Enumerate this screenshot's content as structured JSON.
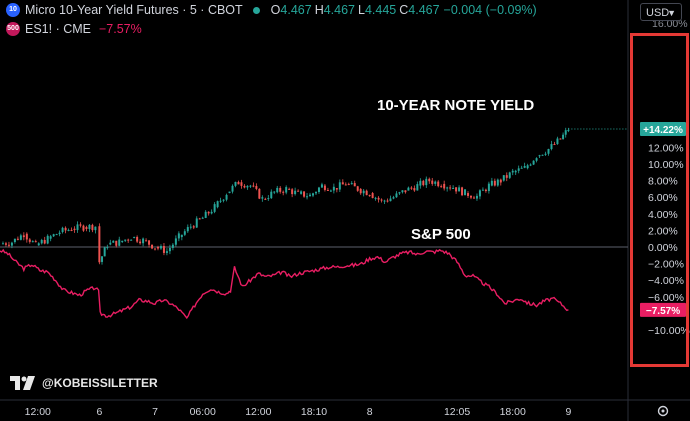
{
  "header": {
    "symbol_badge": "10",
    "title": "Micro 10-Year Yield Futures · 5 · CBOT",
    "o_label": "O",
    "o_value": "4.467",
    "h_label": "H",
    "h_value": "4.467",
    "l_label": "L",
    "l_value": "4.445",
    "c_label": "C",
    "c_value": "4.467",
    "change": "−0.004 (−0.09%)",
    "compare_badge": "500",
    "compare_symbol": "ES1! · CME",
    "compare_change": "−7.57%"
  },
  "currency_button": "USD",
  "watermark": "@KOBEISSILETTER",
  "colors": {
    "yield_up": "#26a69a",
    "yield_down": "#ef5350",
    "sp500": "#e91e63",
    "highlight_box": "#e53935"
  },
  "chart_data": {
    "type": "line",
    "title": "",
    "xlabel": "",
    "ylabel": "",
    "ylim": [
      -10,
      16
    ],
    "y_tick_labels": [
      "12.00%",
      "10.00%",
      "8.00%",
      "6.00%",
      "4.00%",
      "2.00%",
      "0.00%",
      "−2.00%",
      "−4.00%",
      "−6.00%",
      "−10.00%"
    ],
    "y_ticks": [
      12,
      10,
      8,
      6,
      4,
      2,
      0,
      -2,
      -4,
      -6,
      -10
    ],
    "y_top_partial_label": "16.00%",
    "x_tick_labels": [
      "12:00",
      "6",
      "7",
      "06:00",
      "12:00",
      "18:10",
      "8",
      "12:05",
      "18:00",
      "9"
    ],
    "x_ticks": [
      0.5,
      16,
      30,
      42,
      56,
      70,
      84,
      106,
      120,
      134
    ],
    "xlim": [
      -9,
      149
    ],
    "series": [
      {
        "name": "10-YEAR NOTE YIELD",
        "style": "candlestick",
        "x": [
          -9,
          -6,
          -3,
          0,
          3,
          6,
          9,
          12,
          15,
          16,
          18,
          21,
          24,
          27,
          30,
          33,
          36,
          39,
          42,
          45,
          48,
          51,
          54,
          57,
          60,
          63,
          66,
          69,
          72,
          75,
          78,
          81,
          84,
          87,
          90,
          93,
          96,
          99,
          102,
          105,
          108,
          111,
          114,
          117,
          120,
          123,
          126,
          129,
          132,
          134
        ],
        "values": [
          0.4,
          0.6,
          1.6,
          0.2,
          1.0,
          1.8,
          2.2,
          2.4,
          2.5,
          -1.8,
          0.3,
          0.6,
          1.2,
          0.8,
          0.0,
          -0.5,
          1.2,
          2.5,
          3.5,
          4.8,
          6.5,
          7.8,
          7.4,
          5.8,
          6.6,
          7.0,
          6.4,
          6.2,
          7.4,
          7.1,
          7.6,
          7.0,
          6.5,
          5.5,
          6.0,
          6.8,
          7.4,
          8.0,
          7.6,
          7.2,
          6.5,
          6.1,
          7.4,
          8.0,
          9.0,
          9.5,
          11.0,
          11.8,
          13.0,
          14.22
        ]
      },
      {
        "name": "S&P 500",
        "x": [
          -9,
          -7,
          -5,
          -3,
          -1,
          1,
          3,
          5,
          7,
          9,
          11,
          13,
          15,
          15.8,
          16.2,
          18,
          20,
          22,
          24,
          26,
          28,
          30,
          32,
          34,
          36,
          38,
          40,
          42,
          44,
          46,
          48,
          49,
          50,
          52,
          54,
          56,
          58,
          60,
          62,
          64,
          66,
          68,
          70,
          72,
          74,
          76,
          78,
          80,
          82,
          84,
          86,
          88,
          90,
          92,
          94,
          96,
          98,
          100,
          102,
          104,
          106,
          108,
          110,
          112,
          114,
          116,
          118,
          120,
          122,
          124,
          126,
          128,
          130,
          132,
          134
        ],
        "values": [
          -0.4,
          -0.8,
          -1.8,
          -2.6,
          -2.1,
          -2.8,
          -3.0,
          -4.0,
          -5.2,
          -5.5,
          -5.8,
          -5.2,
          -4.9,
          -5.4,
          -8.0,
          -8.3,
          -8.0,
          -7.6,
          -7.2,
          -6.4,
          -6.5,
          -6.8,
          -6.4,
          -6.8,
          -7.5,
          -8.6,
          -7.0,
          -5.6,
          -5.0,
          -5.4,
          -5.6,
          -5.2,
          -2.5,
          -4.8,
          -4.0,
          -3.2,
          -3.6,
          -3.4,
          -3.0,
          -3.6,
          -3.2,
          -3.0,
          -2.8,
          -2.6,
          -2.4,
          -2.4,
          -2.2,
          -2.2,
          -2.0,
          -1.4,
          -1.2,
          -1.8,
          -1.2,
          -0.8,
          -0.6,
          -0.9,
          -0.5,
          -0.6,
          -0.4,
          -0.8,
          -1.8,
          -3.4,
          -3.5,
          -4.2,
          -4.8,
          -5.6,
          -6.8,
          -6.5,
          -6.2,
          -6.8,
          -7.0,
          -6.5,
          -6.2,
          -6.8,
          -7.57
        ]
      }
    ],
    "last_value_labels": [
      "+14.22%",
      "−7.57%"
    ]
  }
}
